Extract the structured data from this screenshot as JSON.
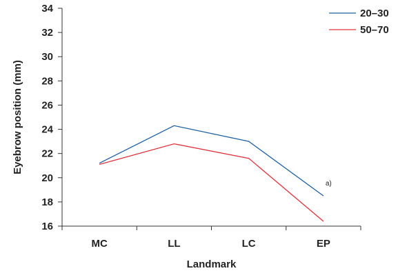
{
  "chart_data": {
    "type": "line",
    "title": "",
    "xlabel": "Landmark",
    "ylabel": "Eyebrow position (mm)",
    "categories": [
      "MC",
      "LL",
      "LC",
      "EP"
    ],
    "ylim": [
      16,
      34
    ],
    "yticks": [
      16,
      18,
      20,
      22,
      24,
      26,
      28,
      30,
      32,
      34
    ],
    "grid": false,
    "legend_position": "top-right",
    "series": [
      {
        "name": "20–30",
        "color": "#1f5fa0",
        "values": [
          21.2,
          24.3,
          23.0,
          18.5
        ]
      },
      {
        "name": "50–70",
        "color": "#e0323c",
        "values": [
          21.1,
          22.8,
          21.6,
          16.4
        ]
      }
    ],
    "annotations": [
      {
        "text": "a)",
        "category": "EP",
        "y": 19.6
      }
    ]
  }
}
